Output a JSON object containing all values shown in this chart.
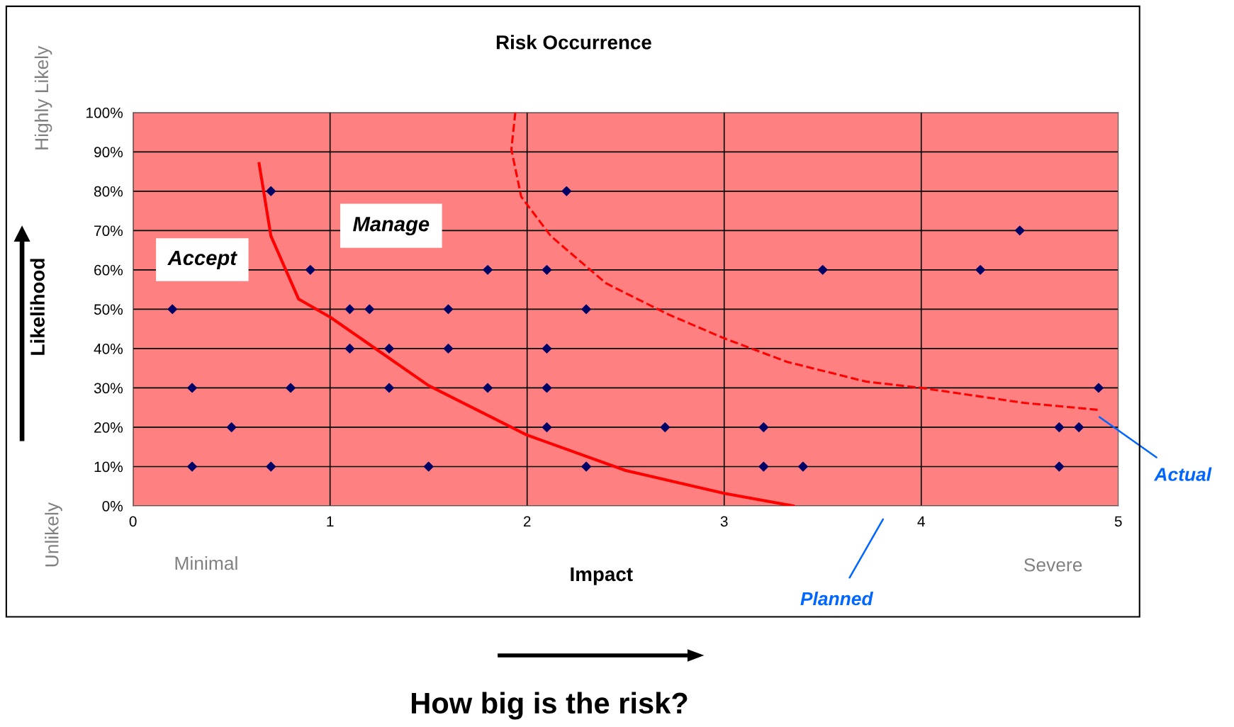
{
  "chart_data": {
    "type": "scatter",
    "title": "Risk Occurrence",
    "xlabel": "Impact",
    "ylabel": "Likelihood",
    "xlim": [
      0,
      5
    ],
    "xticks": [
      0,
      1,
      2,
      3,
      4,
      5
    ],
    "ylim": [
      0,
      100
    ],
    "yticks": [
      {
        "value": 0,
        "label": "0%"
      },
      {
        "value": 10,
        "label": "10%"
      },
      {
        "value": 20,
        "label": "20%"
      },
      {
        "value": 30,
        "label": "30%"
      },
      {
        "value": 40,
        "label": "40%"
      },
      {
        "value": 50,
        "label": "50%"
      },
      {
        "value": 60,
        "label": "60%"
      },
      {
        "value": 70,
        "label": "70%"
      },
      {
        "value": 80,
        "label": "80%"
      },
      {
        "value": 90,
        "label": "90%"
      },
      {
        "value": 100,
        "label": "100%"
      }
    ],
    "grid": true,
    "legend": false,
    "series": [
      {
        "color": "#000066",
        "marker": "diamond",
        "x": [
          0.2,
          0.3,
          0.3,
          0.5,
          0.7,
          0.7,
          0.8,
          0.9,
          1.1,
          1.1,
          1.2,
          1.3,
          1.3,
          1.5,
          1.6,
          1.6,
          1.8,
          1.8,
          2.1,
          2.1,
          2.1,
          2.1,
          2.2,
          2.3,
          2.3,
          2.7,
          3.2,
          3.2,
          3.4,
          3.5,
          4.3,
          4.5,
          4.7,
          4.7,
          4.8,
          4.9
        ],
        "values": [
          50,
          30,
          10,
          20,
          80,
          10,
          30,
          60,
          50,
          40,
          50,
          40,
          30,
          10,
          50,
          40,
          60,
          30,
          60,
          40,
          30,
          20,
          80,
          50,
          10,
          20,
          20,
          10,
          10,
          60,
          60,
          70,
          20,
          10,
          20,
          30
        ]
      },
      {
        "type": "line",
        "name": "Planned",
        "color": "#ff0000",
        "marker": "none",
        "line_style": "solid",
        "x": [
          0.64,
          0.7,
          0.84,
          1.0,
          1.5,
          2.0,
          2.5,
          3.0,
          3.35
        ],
        "values": [
          87,
          68.6,
          52.6,
          48,
          30.6,
          18,
          9,
          3.2,
          0
        ]
      },
      {
        "type": "line",
        "name": "Actual",
        "color": "#ff0000",
        "marker": "none",
        "line_style": "dashed",
        "x": [
          1.94,
          1.92,
          1.97,
          2.12,
          2.4,
          2.72,
          3.0,
          3.32,
          3.72,
          4.0,
          4.52,
          4.9
        ],
        "values": [
          100,
          90.6,
          78.6,
          68.6,
          56.6,
          48.6,
          42.6,
          36.6,
          31.6,
          30,
          26.2,
          24.4
        ]
      }
    ],
    "annotations": [
      "Accept",
      "Manage",
      "Highly Likely",
      "Unlikely",
      "Minimal",
      "Severe",
      "How big is the risk?"
    ]
  }
}
